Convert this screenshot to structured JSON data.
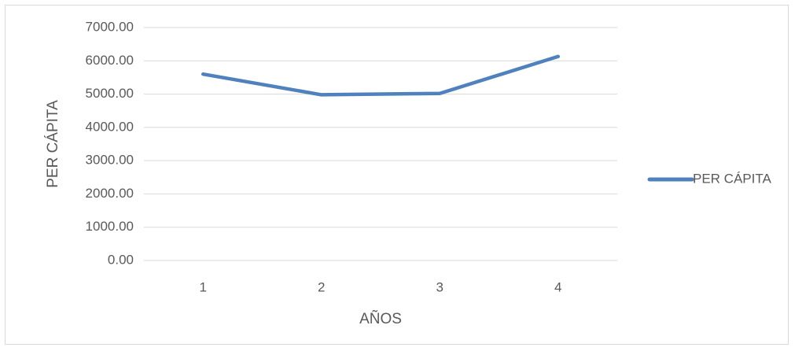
{
  "chart_data": {
    "type": "line",
    "categories": [
      "1",
      "2",
      "3",
      "4"
    ],
    "series": [
      {
        "name": "PER CÁPITA",
        "values": [
          5600,
          4980,
          5020,
          6130
        ],
        "color": "#4f81bd"
      }
    ],
    "xlabel": "AÑOS",
    "ylabel": "PER CÁPITA",
    "ylim": [
      0,
      7000
    ],
    "yticks": [
      "0.00",
      "1000.00",
      "2000.00",
      "3000.00",
      "4000.00",
      "5000.00",
      "6000.00",
      "7000.00"
    ],
    "grid": true,
    "legend_position": "right",
    "gridline_color": "#d9d9d9"
  }
}
